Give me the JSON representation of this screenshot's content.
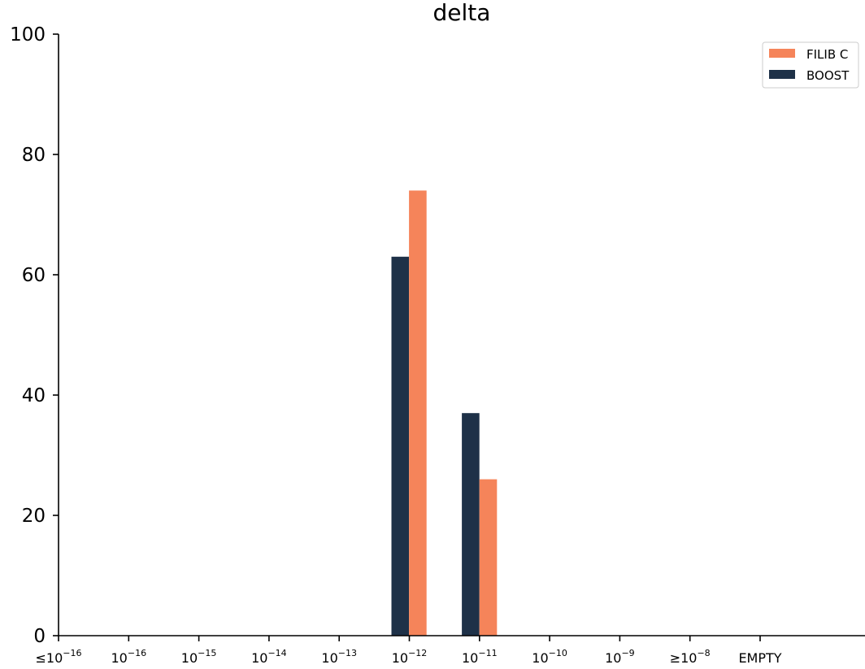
{
  "chart_data": {
    "type": "bar",
    "title": "delta",
    "xlabel": "",
    "ylabel": "",
    "ylim": [
      0,
      100
    ],
    "yticks": [
      0,
      20,
      40,
      60,
      80,
      100
    ],
    "categories": [
      {
        "prefix": "≤",
        "base": "10",
        "exp": "−16"
      },
      {
        "prefix": "",
        "base": "10",
        "exp": "−16"
      },
      {
        "prefix": "",
        "base": "10",
        "exp": "−15"
      },
      {
        "prefix": "",
        "base": "10",
        "exp": "−14"
      },
      {
        "prefix": "",
        "base": "10",
        "exp": "−13"
      },
      {
        "prefix": "",
        "base": "10",
        "exp": "−12"
      },
      {
        "prefix": "",
        "base": "10",
        "exp": "−11"
      },
      {
        "prefix": "",
        "base": "10",
        "exp": "−10"
      },
      {
        "prefix": "",
        "base": "10",
        "exp": "−9"
      },
      {
        "prefix": "≥",
        "base": "10",
        "exp": "−8"
      },
      {
        "prefix": "EMPTY",
        "base": "",
        "exp": ""
      }
    ],
    "series": [
      {
        "name": "FILIB C",
        "color": "#f5845a",
        "values": [
          0,
          0,
          0,
          0,
          0,
          74,
          26,
          0,
          0,
          0,
          0
        ]
      },
      {
        "name": "BOOST",
        "color": "#1e3148",
        "values": [
          0,
          0,
          0,
          0,
          0,
          63,
          37,
          0,
          0,
          0,
          0
        ]
      }
    ],
    "legend_position": "top-right",
    "grid": false
  }
}
